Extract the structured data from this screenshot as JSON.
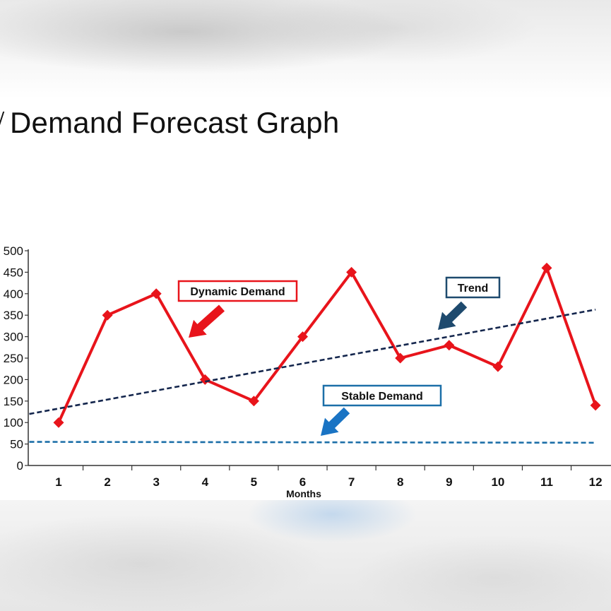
{
  "title": "Demand Forecast Graph",
  "chart_data": {
    "type": "line",
    "x": [
      1,
      2,
      3,
      4,
      5,
      6,
      7,
      8,
      9,
      10,
      11,
      12
    ],
    "xlabel": "Months",
    "ylabel": "",
    "ylim": [
      0,
      500
    ],
    "y_ticks": [
      0,
      50,
      100,
      150,
      200,
      250,
      300,
      350,
      400,
      450,
      500
    ],
    "grid": false,
    "series": [
      {
        "name": "Dynamic Demand",
        "color": "#e8141b",
        "marker": "diamond",
        "values": [
          100,
          350,
          400,
          200,
          150,
          300,
          450,
          250,
          280,
          230,
          460,
          140
        ]
      },
      {
        "name": "Trend",
        "color": "#14264d",
        "style": "dashed",
        "start": [
          0.4,
          120
        ],
        "end": [
          12,
          363
        ]
      },
      {
        "name": "Stable Demand",
        "color": "#1c6fa8",
        "style": "dashed",
        "start": [
          0.4,
          55
        ],
        "end": [
          12,
          53
        ]
      }
    ],
    "annotations": [
      {
        "text": "Dynamic Demand",
        "border_color": "#e8141b",
        "arrow_color": "#e8141b"
      },
      {
        "text": "Trend",
        "border_color": "#1e4a6e",
        "arrow_color": "#1e4a6e"
      },
      {
        "text": "Stable Demand",
        "border_color": "#1c6fa8",
        "arrow_color": "#1a74c4"
      }
    ]
  }
}
